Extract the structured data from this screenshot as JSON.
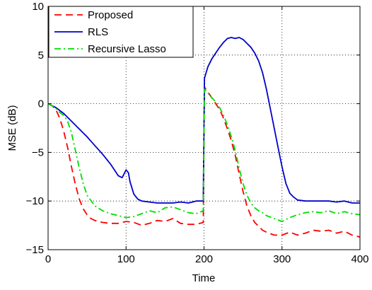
{
  "chart_data": {
    "type": "line",
    "title": "",
    "xlabel": "Time",
    "ylabel": "MSE (dB)",
    "xlim": [
      0,
      400
    ],
    "ylim": [
      -15,
      10
    ],
    "xticks": [
      0,
      100,
      200,
      300,
      400
    ],
    "yticks": [
      -15,
      -10,
      -5,
      0,
      5,
      10
    ],
    "xtick_labels": [
      "0",
      "100",
      "200",
      "300",
      "400"
    ],
    "ytick_labels": [
      "−15",
      "−10",
      "−5",
      "0",
      "5",
      "10"
    ],
    "grid": true,
    "legend_position": "top-left",
    "series": [
      {
        "name": "Proposed",
        "color": "#ff0000",
        "style": "dashed",
        "x": [
          0,
          5,
          10,
          15,
          20,
          25,
          30,
          35,
          40,
          45,
          50,
          55,
          60,
          70,
          80,
          90,
          100,
          110,
          120,
          130,
          140,
          150,
          160,
          170,
          180,
          190,
          199,
          200.5,
          205,
          210,
          215,
          220,
          225,
          230,
          235,
          240,
          245,
          250,
          255,
          260,
          265,
          270,
          275,
          280,
          290,
          300,
          310,
          320,
          330,
          340,
          350,
          360,
          370,
          380,
          390,
          400
        ],
        "y": [
          0,
          -0.2,
          -0.6,
          -1.5,
          -2.8,
          -4.5,
          -6.5,
          -8.3,
          -9.8,
          -10.8,
          -11.4,
          -11.8,
          -12.0,
          -12.2,
          -12.3,
          -12.3,
          -12.1,
          -12.2,
          -12.5,
          -12.3,
          -12.0,
          -12.1,
          -11.8,
          -12.3,
          -12.4,
          -12.4,
          -12.2,
          1.7,
          1.2,
          0.6,
          0.0,
          -0.6,
          -1.5,
          -2.6,
          -3.8,
          -5.3,
          -7.2,
          -9.0,
          -10.5,
          -11.5,
          -12.2,
          -12.6,
          -13.0,
          -13.2,
          -13.5,
          -13.5,
          -13.2,
          -13.5,
          -13.3,
          -13.0,
          -13.1,
          -13.0,
          -13.3,
          -13.1,
          -13.5,
          -13.7
        ]
      },
      {
        "name": "RLS",
        "color": "#0000cc",
        "style": "solid",
        "x": [
          0,
          5,
          10,
          20,
          30,
          40,
          50,
          60,
          70,
          80,
          90,
          95,
          100,
          103,
          105,
          110,
          115,
          120,
          130,
          140,
          150,
          160,
          170,
          180,
          190,
          199,
          200.5,
          205,
          210,
          215,
          220,
          225,
          230,
          235,
          240,
          245,
          250,
          255,
          260,
          265,
          270,
          275,
          280,
          285,
          290,
          295,
          300,
          305,
          310,
          315,
          320,
          330,
          340,
          350,
          360,
          370,
          380,
          390,
          400
        ],
        "y": [
          0,
          -0.2,
          -0.4,
          -1.0,
          -1.8,
          -2.6,
          -3.4,
          -4.3,
          -5.2,
          -6.2,
          -7.4,
          -7.6,
          -6.8,
          -7.1,
          -8.0,
          -9.3,
          -9.8,
          -10.0,
          -10.1,
          -10.2,
          -10.2,
          -10.2,
          -10.1,
          -10.2,
          -10.0,
          -10.0,
          2.6,
          3.8,
          4.6,
          5.2,
          5.8,
          6.3,
          6.7,
          6.8,
          6.7,
          6.8,
          6.6,
          6.2,
          5.8,
          5.2,
          4.4,
          3.2,
          1.5,
          -0.5,
          -2.5,
          -4.5,
          -6.5,
          -8.2,
          -9.2,
          -9.6,
          -9.9,
          -10.0,
          -10.0,
          -10.0,
          -10.0,
          -10.1,
          -10.0,
          -10.2,
          -10.2
        ]
      },
      {
        "name": "Recursive Lasso",
        "color": "#00dd00",
        "style": "dashdot",
        "x": [
          0,
          5,
          10,
          15,
          20,
          25,
          30,
          35,
          40,
          45,
          50,
          60,
          70,
          80,
          90,
          100,
          110,
          120,
          130,
          140,
          150,
          160,
          170,
          180,
          190,
          199,
          200.5,
          205,
          210,
          215,
          220,
          225,
          230,
          235,
          240,
          245,
          250,
          255,
          260,
          265,
          270,
          275,
          280,
          290,
          300,
          310,
          320,
          330,
          340,
          350,
          360,
          370,
          380,
          390,
          400
        ],
        "y": [
          0,
          -0.2,
          -0.5,
          -0.9,
          -1.2,
          -1.8,
          -3.0,
          -4.8,
          -6.6,
          -8.2,
          -9.4,
          -10.5,
          -11.0,
          -11.3,
          -11.5,
          -11.7,
          -11.6,
          -11.3,
          -11.0,
          -11.2,
          -10.7,
          -10.6,
          -10.9,
          -11.2,
          -11.3,
          -11.0,
          1.5,
          1.1,
          0.6,
          0.2,
          -0.4,
          -1.2,
          -2.2,
          -3.4,
          -4.8,
          -6.6,
          -8.2,
          -9.4,
          -10.2,
          -10.7,
          -11.0,
          -11.2,
          -11.5,
          -11.8,
          -12.1,
          -11.7,
          -11.4,
          -11.2,
          -11.1,
          -11.2,
          -11.0,
          -11.3,
          -11.1,
          -11.3,
          -11.4
        ]
      }
    ]
  }
}
